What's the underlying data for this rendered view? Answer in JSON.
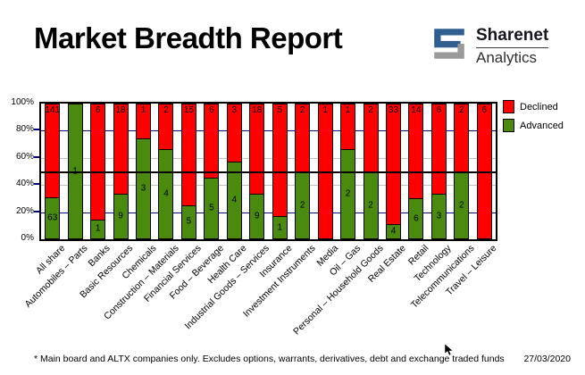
{
  "header": {
    "title": "Market Breadth Report",
    "logo": {
      "line1": "Sharenet",
      "line2": "Analytics",
      "icon_blue": "#2f5e8f",
      "icon_gray": "#9a9a9a"
    }
  },
  "chart_data": {
    "type": "bar",
    "stacked": true,
    "title": "Market Breadth Report",
    "xlabel": "",
    "ylabel": "",
    "ylim": [
      0,
      100
    ],
    "y_ticks": [
      "100%",
      "80%",
      "60%",
      "40%",
      "20%",
      "0%"
    ],
    "reference_line_pct": 50,
    "legend_position": "top-right",
    "categories": [
      "All share",
      "Automobiles – Parts",
      "Banks",
      "Basic Resources",
      "Chemicals",
      "Construction – Materials",
      "Financial Services",
      "Food – Beverage",
      "Health Care",
      "Industrial Goods – Services",
      "Insurance",
      "Investment Instruments",
      "Media",
      "Oil – Gas",
      "Personal – Household Goods",
      "Real Estate",
      "Retail",
      "Technology",
      "Telecommunications",
      "Travel – Leisure"
    ],
    "series": [
      {
        "name": "Declined",
        "color": "#ff0000",
        "values": [
          141,
          0,
          6,
          18,
          1,
          2,
          15,
          6,
          3,
          18,
          5,
          2,
          1,
          1,
          2,
          33,
          14,
          6,
          2,
          6
        ]
      },
      {
        "name": "Advanced",
        "color": "#4a8a0e",
        "values": [
          63,
          1,
          1,
          9,
          3,
          4,
          5,
          5,
          4,
          9,
          1,
          2,
          0,
          2,
          2,
          4,
          6,
          3,
          2,
          0
        ]
      }
    ],
    "gridlines": [
      {
        "pct": 80,
        "color": "#000080"
      },
      {
        "pct": 60,
        "color": "#c0c0c0"
      },
      {
        "pct": 40,
        "color": "#c0c0c0"
      },
      {
        "pct": 20,
        "color": "#000080"
      }
    ],
    "axis_tick_color": "#000080"
  },
  "footer": {
    "note": "* Main board and ALTX companies only. Excludes options, warrants, derivatives, debt and exchange traded funds",
    "date": "27/03/2020"
  }
}
